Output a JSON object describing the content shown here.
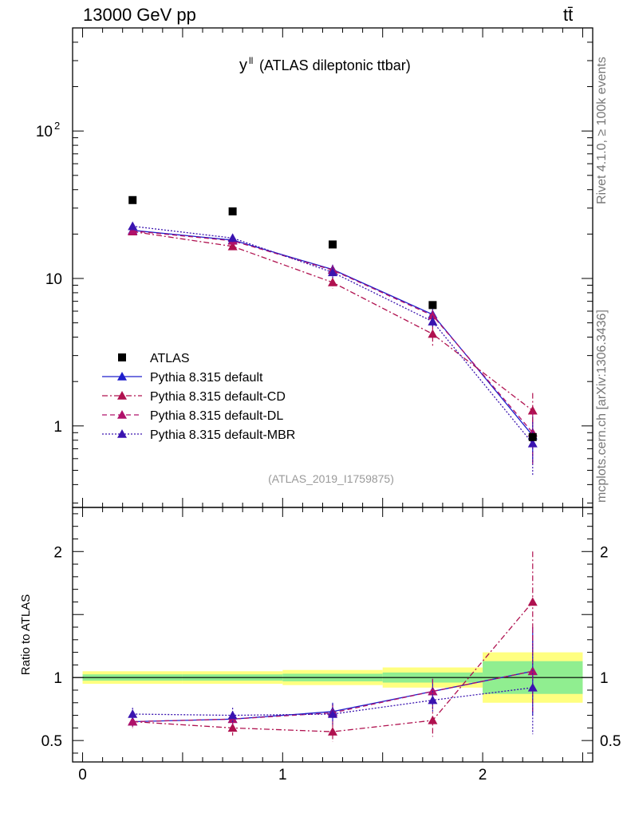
{
  "header": {
    "energy_label": "13000 GeV pp",
    "process_label": "tt̄"
  },
  "side_labels": {
    "rivet": "Rivet 4.1.0, ≥ 100k events",
    "mcplots": "mcplots.cern.ch [arXiv:1306.3436]"
  },
  "colors": {
    "data": "#000000",
    "default": "#1f1fcc",
    "cd": "#b0114f",
    "dl": "#b0116a",
    "mbr": "#3a14b0",
    "band_inner": "#90ee90",
    "band_outer": "#ffff80"
  },
  "chart_data": {
    "type": "scatter",
    "title": "y",
    "title_superscript": "ll",
    "title_suffix": "(ATLAS dileptonic ttbar)",
    "analysis_label": "(ATLAS_2019_I1759875)",
    "x_ticks": [
      "0",
      "1",
      "2"
    ],
    "xlim": [
      -0.05,
      2.55
    ],
    "main": {
      "yscale": "log",
      "ylim": [
        0.28,
        500
      ],
      "y_ticks": [
        {
          "value": 1,
          "label": "1"
        },
        {
          "value": 10,
          "label": "10"
        },
        {
          "value": 100,
          "label": "10",
          "sup": "2"
        }
      ]
    },
    "ratio": {
      "ylabel": "Ratio to ATLAS",
      "ylim": [
        0.33,
        2.35
      ],
      "y_ticks": [
        {
          "value": 0.5,
          "label": "0.5"
        },
        {
          "value": 1,
          "label": "1"
        },
        {
          "value": 2,
          "label": "2"
        }
      ]
    },
    "bins": [
      [
        0,
        0.5
      ],
      [
        0.5,
        1.0
      ],
      [
        1.0,
        1.5
      ],
      [
        1.5,
        2.0
      ],
      [
        2.0,
        2.5
      ]
    ],
    "x": [
      0.25,
      0.75,
      1.25,
      1.75,
      2.25
    ],
    "data": {
      "name": "ATLAS",
      "values": [
        34.0,
        28.5,
        17.0,
        6.6,
        0.84
      ],
      "band_inner": [
        0.025,
        0.025,
        0.03,
        0.04,
        0.13
      ],
      "band_outer": [
        0.05,
        0.05,
        0.06,
        0.08,
        0.2
      ]
    },
    "series": [
      {
        "key": "default",
        "name": "Pythia 8.315 default",
        "style": "solid",
        "values": [
          21.2,
          18.2,
          11.5,
          5.7,
          0.86
        ],
        "errors": [
          1.1,
          1.0,
          0.9,
          0.5,
          0.3
        ]
      },
      {
        "key": "cd",
        "name": "Pythia 8.315 default-CD",
        "style": "dashdot",
        "values": [
          20.8,
          16.5,
          9.4,
          4.2,
          1.27
        ],
        "errors": [
          1.1,
          1.0,
          0.9,
          0.7,
          0.4
        ]
      },
      {
        "key": "dl",
        "name": "Pythia 8.315 default-DL",
        "style": "dashed",
        "values": [
          21.0,
          18.0,
          11.4,
          5.6,
          0.9
        ],
        "errors": [
          1.1,
          1.0,
          0.9,
          0.5,
          0.35
        ]
      },
      {
        "key": "mbr",
        "name": "Pythia 8.315 default-MBR",
        "style": "dotted",
        "values": [
          22.6,
          18.8,
          11.0,
          5.1,
          0.76
        ],
        "errors": [
          1.3,
          1.2,
          1.0,
          0.5,
          0.3
        ]
      }
    ],
    "ratios": {
      "default": {
        "values": [
          0.65,
          0.67,
          0.73,
          0.89,
          1.05
        ],
        "errors": [
          0.04,
          0.05,
          0.07,
          0.1,
          0.35
        ]
      },
      "cd": {
        "values": [
          0.65,
          0.6,
          0.57,
          0.66,
          1.6
        ],
        "errors": [
          0.05,
          0.06,
          0.08,
          0.13,
          0.4
        ]
      },
      "dl": {
        "values": [
          0.65,
          0.67,
          0.72,
          0.89,
          1.05
        ],
        "errors": [
          0.04,
          0.05,
          0.07,
          0.1,
          0.35
        ]
      },
      "mbr": {
        "values": [
          0.71,
          0.7,
          0.71,
          0.82,
          0.92
        ],
        "errors": [
          0.05,
          0.06,
          0.08,
          0.1,
          0.37
        ]
      }
    }
  }
}
